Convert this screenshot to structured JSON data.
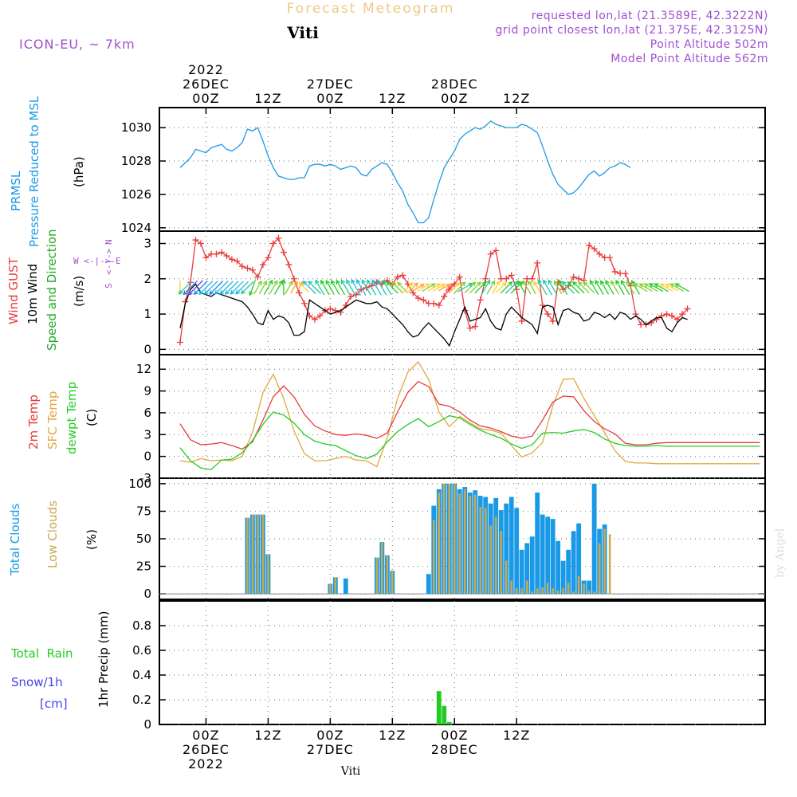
{
  "header": {
    "title": "Forecast Meteogram",
    "location": "Viti",
    "model": "ICON-EU, ~ 7km",
    "requested": "requested lon,lat (21.3589E, 42.3222N)",
    "gridpoint": "grid point closest lon,lat (21.375E, 42.3125N)",
    "point_alt": "Point Altitude 502m",
    "model_alt": "Model Point Altitude 562m",
    "footer_location": "Viti",
    "watermark": "by Angel"
  },
  "time_axis": {
    "x_range": [
      -9,
      108
    ],
    "ticks": [
      {
        "h": 0,
        "top": [
          "2022",
          "26DEC",
          "00Z"
        ],
        "bottom": [
          "00Z",
          "26DEC",
          "2022"
        ]
      },
      {
        "h": 12,
        "top": [
          "12Z"
        ],
        "bottom": [
          "12Z"
        ]
      },
      {
        "h": 24,
        "top": [
          "27DEC",
          "00Z"
        ],
        "bottom": [
          "00Z",
          "27DEC"
        ]
      },
      {
        "h": 36,
        "top": [
          "12Z"
        ],
        "bottom": [
          "12Z"
        ]
      },
      {
        "h": 48,
        "top": [
          "28DEC",
          "00Z"
        ],
        "bottom": [
          "00Z",
          "28DEC"
        ]
      },
      {
        "h": 60,
        "top": [
          "12Z"
        ],
        "bottom": [
          "12Z"
        ]
      }
    ]
  },
  "colors": {
    "pressure": "#1a9ae6",
    "gust": "#e83c3c",
    "wind": "#000000",
    "temp2m": "#e83c3c",
    "sfc": "#e0a840",
    "dewpt": "#22cc22",
    "total_clouds": "#1a9ae6",
    "low_clouds": "#c8a850",
    "rain": "#22cc22",
    "snow": "#4444ee",
    "purple": "#a050d0"
  },
  "chart_data": [
    {
      "type": "line",
      "panel": "pressure",
      "ylabels": [
        "PRMSL",
        "Pressure Reduced to MSL"
      ],
      "unit": "(hPa)",
      "ylim": [
        1023.8,
        1031.2
      ],
      "yticks": [
        1024,
        1026,
        1028,
        1030
      ],
      "series": [
        {
          "name": "PRMSL",
          "x_start": -5,
          "x_step": 1,
          "values": [
            1027.6,
            1027.9,
            1028.2,
            1028.7,
            1028.6,
            1028.5,
            1028.8,
            1028.9,
            1029.0,
            1028.7,
            1028.6,
            1028.8,
            1029.1,
            1029.9,
            1029.8,
            1030.0,
            1029.2,
            1028.3,
            1027.6,
            1027.1,
            1027.0,
            1026.9,
            1026.9,
            1027.0,
            1027.0,
            1027.7,
            1027.8,
            1027.8,
            1027.7,
            1027.8,
            1027.7,
            1027.5,
            1027.6,
            1027.7,
            1027.6,
            1027.2,
            1027.1,
            1027.5,
            1027.7,
            1027.9,
            1027.8,
            1027.3,
            1026.7,
            1026.2,
            1025.4,
            1024.9,
            1024.3,
            1024.3,
            1024.6,
            1025.7,
            1026.7,
            1027.6,
            1028.1,
            1028.6,
            1029.3,
            1029.6,
            1029.8,
            1030.0,
            1029.9,
            1030.1,
            1030.4,
            1030.2,
            1030.1,
            1030.0,
            1030.0,
            1030.0,
            1030.2,
            1030.1,
            1029.9,
            1029.7,
            1028.9,
            1028.0,
            1027.2,
            1026.6,
            1026.3,
            1026.0,
            1026.1,
            1026.4,
            1026.8,
            1027.2,
            1027.4,
            1027.1,
            1027.3,
            1027.6,
            1027.7,
            1027.9,
            1027.8,
            1027.6
          ]
        }
      ]
    },
    {
      "type": "line",
      "panel": "wind",
      "ylabels": [
        "Wind GUST",
        "10m Wind",
        "Speed and Direction"
      ],
      "unit": "(m/s)",
      "ylim": [
        -0.15,
        3.35
      ],
      "yticks": [
        0,
        1,
        2,
        3
      ],
      "compass": [
        "N",
        "W <-|-> E",
        "S"
      ],
      "series": [
        {
          "name": "Wind GUST",
          "x_start": -5,
          "x_step": 1,
          "values": [
            0.2,
            1.35,
            1.9,
            3.1,
            3.0,
            2.6,
            2.7,
            2.7,
            2.75,
            2.65,
            2.55,
            2.5,
            2.35,
            2.3,
            2.25,
            2.05,
            2.4,
            2.6,
            3.0,
            3.15,
            2.75,
            2.4,
            2.0,
            1.6,
            1.3,
            0.95,
            0.85,
            0.95,
            1.1,
            1.15,
            1.1,
            1.05,
            1.25,
            1.5,
            1.55,
            1.7,
            1.75,
            1.8,
            1.9,
            1.85,
            1.95,
            1.85,
            2.05,
            2.1,
            1.85,
            1.6,
            1.45,
            1.4,
            1.3,
            1.3,
            1.25,
            1.5,
            1.7,
            1.85,
            2.05,
            1.1,
            0.6,
            0.65,
            1.4,
            2.0,
            2.7,
            2.8,
            2.0,
            2.0,
            2.1,
            1.7,
            0.8,
            2.0,
            2.0,
            2.45,
            1.25,
            1.0,
            0.8,
            1.9,
            1.7,
            1.8,
            2.05,
            2.0,
            1.95,
            2.95,
            2.85,
            2.7,
            2.6,
            2.6,
            2.2,
            2.15,
            2.15,
            1.8,
            1.0,
            0.7,
            0.7,
            0.75,
            0.85,
            0.95,
            1.0,
            0.95,
            0.85,
            1.0,
            1.15
          ]
        },
        {
          "name": "10m Wind",
          "x_start": -5,
          "x_step": 1,
          "values": [
            0.6,
            1.3,
            1.7,
            1.85,
            1.6,
            1.55,
            1.5,
            1.6,
            1.55,
            1.5,
            1.45,
            1.4,
            1.35,
            1.2,
            1.0,
            0.75,
            0.7,
            1.1,
            0.85,
            0.95,
            0.9,
            0.75,
            0.4,
            0.4,
            0.5,
            1.4,
            1.3,
            1.2,
            1.1,
            1.0,
            1.05,
            1.1,
            1.2,
            1.3,
            1.4,
            1.35,
            1.3,
            1.3,
            1.35,
            1.2,
            1.15,
            1.0,
            0.85,
            0.7,
            0.5,
            0.35,
            0.4,
            0.6,
            0.75,
            0.6,
            0.45,
            0.3,
            0.1,
            0.5,
            0.85,
            1.2,
            0.8,
            0.85,
            0.9,
            1.15,
            0.8,
            0.6,
            0.55,
            1.0,
            1.2,
            1.05,
            0.9,
            0.8,
            0.7,
            0.45,
            1.2,
            1.25,
            1.2,
            0.7,
            1.1,
            1.15,
            1.05,
            1.0,
            0.8,
            0.85,
            1.05,
            1.0,
            0.9,
            1.0,
            0.85,
            1.05,
            1.0,
            0.85,
            0.95,
            0.85,
            0.7,
            0.8,
            0.9,
            0.9,
            0.6,
            0.5,
            0.75,
            0.9,
            0.85
          ]
        },
        {
          "name": "Speed and Direction",
          "directions": [
            180,
            225,
            225,
            225,
            225,
            225,
            225,
            225,
            225,
            225,
            225,
            225,
            225,
            225,
            200,
            30,
            30,
            30,
            30,
            30,
            0,
            30,
            30,
            30,
            315,
            315,
            315,
            330,
            330,
            330,
            330,
            330,
            330,
            330,
            330,
            330,
            330,
            330,
            330,
            330,
            330,
            315,
            315,
            315,
            45,
            45,
            60,
            60,
            60,
            60,
            60,
            60,
            45,
            45,
            45,
            60,
            45,
            45,
            45,
            30,
            30,
            30,
            45,
            45,
            45,
            45,
            330,
            330,
            330,
            330,
            330,
            330,
            330,
            330,
            330,
            315,
            315,
            315,
            315,
            315,
            330,
            330,
            330,
            330,
            330,
            330,
            330,
            330,
            330,
            300,
            300,
            300,
            300,
            300,
            300,
            300,
            300,
            300
          ]
        }
      ]
    },
    {
      "type": "line",
      "panel": "temperature",
      "ylabels": [
        "2m Temp",
        "SFC Temp",
        "dewpt Temp"
      ],
      "unit": "(C)",
      "ylim": [
        -3,
        14
      ],
      "yticks": [
        -3,
        0,
        3,
        6,
        9,
        12
      ],
      "series": [
        {
          "name": "2m Temp",
          "x": [
            -5,
            -3,
            -1,
            1,
            3,
            5,
            7,
            9,
            11,
            13,
            15,
            17,
            19,
            21,
            23,
            25,
            27,
            29,
            31,
            33,
            35,
            37,
            39,
            41,
            43,
            45,
            47,
            49,
            51,
            53,
            55,
            57,
            59,
            61,
            63,
            65,
            67,
            69,
            71,
            73,
            75,
            77,
            79,
            81,
            83,
            85,
            87,
            89,
            91,
            93,
            95,
            107
          ],
          "values": [
            4.5,
            2.3,
            1.6,
            1.7,
            1.9,
            1.5,
            1.0,
            2.0,
            5.0,
            8.2,
            9.7,
            8.2,
            5.8,
            4.2,
            3.5,
            3.0,
            2.9,
            3.1,
            2.9,
            2.5,
            3.2,
            6.1,
            8.8,
            10.3,
            9.6,
            7.2,
            6.9,
            6.1,
            5.0,
            4.2,
            3.9,
            3.4,
            2.8,
            2.5,
            2.8,
            5.0,
            7.5,
            8.3,
            8.2,
            6.3,
            4.8,
            3.8,
            3.1,
            1.8,
            1.6,
            1.6,
            1.8,
            1.9,
            1.9,
            1.9,
            1.9,
            1.9
          ]
        },
        {
          "name": "SFC Temp",
          "x": [
            -5,
            -3,
            -1,
            1,
            3,
            5,
            7,
            9,
            11,
            13,
            15,
            17,
            19,
            21,
            23,
            25,
            27,
            29,
            31,
            33,
            35,
            37,
            39,
            41,
            43,
            45,
            47,
            49,
            51,
            53,
            55,
            57,
            59,
            61,
            63,
            65,
            67,
            69,
            71,
            73,
            75,
            77,
            79,
            81,
            83,
            85,
            87,
            89,
            91,
            93,
            95,
            107
          ],
          "values": [
            -0.6,
            -0.8,
            -0.3,
            -0.6,
            -0.5,
            -0.6,
            0.0,
            3.3,
            8.8,
            11.3,
            8.0,
            3.5,
            0.4,
            -0.6,
            -0.6,
            -0.3,
            0.0,
            -0.5,
            -0.6,
            -1.4,
            2.5,
            8.0,
            11.6,
            13.0,
            10.6,
            6.1,
            4.1,
            5.5,
            4.6,
            3.8,
            3.6,
            3.2,
            1.5,
            -0.1,
            0.5,
            1.9,
            7.0,
            10.6,
            10.7,
            8.0,
            5.6,
            3.3,
            0.8,
            -0.7,
            -0.9,
            -0.9,
            -1.0,
            -1.0,
            -1.0,
            -1.0,
            -1.0,
            -1.0
          ]
        },
        {
          "name": "dewpt Temp",
          "x": [
            -5,
            -3,
            -1,
            1,
            3,
            5,
            7,
            9,
            11,
            13,
            15,
            17,
            19,
            21,
            23,
            25,
            27,
            29,
            31,
            33,
            35,
            37,
            39,
            41,
            43,
            45,
            47,
            49,
            51,
            53,
            55,
            57,
            59,
            61,
            63,
            65,
            67,
            69,
            71,
            73,
            75,
            77,
            79,
            81,
            83,
            85,
            87,
            89,
            91,
            93,
            95,
            107
          ],
          "values": [
            1.2,
            -0.6,
            -1.6,
            -1.8,
            -0.5,
            -0.4,
            0.5,
            2.2,
            4.4,
            6.1,
            5.7,
            4.6,
            3.0,
            2.1,
            1.7,
            1.5,
            0.8,
            0.1,
            -0.3,
            0.3,
            2.0,
            3.4,
            4.4,
            5.2,
            4.1,
            4.8,
            5.6,
            5.3,
            4.4,
            3.6,
            3.0,
            2.5,
            1.7,
            1.1,
            1.6,
            3.2,
            3.3,
            3.2,
            3.5,
            3.7,
            3.3,
            2.4,
            1.8,
            1.5,
            1.4,
            1.4,
            1.5,
            1.4,
            1.4,
            1.4,
            1.4,
            1.4
          ]
        }
      ]
    },
    {
      "type": "bar",
      "panel": "clouds",
      "ylabels": [
        "Total Clouds",
        "Low Clouds"
      ],
      "unit": "(%)",
      "ylim": [
        -5,
        105
      ],
      "yticks": [
        0,
        25,
        50,
        75,
        100
      ],
      "hours": [
        8,
        9,
        10,
        11,
        12,
        24,
        25,
        27,
        33,
        34,
        35,
        36,
        43,
        44,
        45,
        46,
        47,
        48,
        49,
        50,
        51,
        52,
        53,
        54,
        55,
        56,
        57,
        58,
        59,
        60,
        61,
        62,
        63,
        64,
        65,
        66,
        67,
        68,
        69,
        70,
        71,
        72,
        73,
        74,
        75,
        76,
        77,
        78,
        79,
        80,
        81
      ],
      "series": [
        {
          "name": "Total Clouds",
          "values": [
            69,
            72,
            72,
            72,
            36,
            9,
            15,
            14,
            33,
            47,
            35,
            21,
            18,
            80,
            95,
            100,
            100,
            100,
            95,
            97,
            92,
            94,
            89,
            88,
            82,
            87,
            76,
            82,
            88,
            78,
            40,
            46,
            52,
            92,
            72,
            70,
            68,
            48,
            30,
            40,
            57,
            64,
            12,
            12,
            100,
            59,
            63,
            0,
            0,
            0,
            0
          ]
        },
        {
          "name": "Low Clouds",
          "values": [
            69,
            72,
            72,
            72,
            36,
            9,
            15,
            0,
            33,
            47,
            35,
            21,
            0,
            67,
            92,
            100,
            100,
            100,
            91,
            95,
            89,
            90,
            79,
            78,
            62,
            70,
            57,
            30,
            12,
            5,
            5,
            12,
            2,
            5,
            6,
            10,
            5,
            3,
            5,
            10,
            2,
            16,
            9,
            3,
            2,
            46,
            59,
            54,
            0,
            0,
            0
          ]
        }
      ]
    },
    {
      "type": "bar",
      "panel": "precip",
      "ylabels": [
        "Total  Rain",
        "Snow/1h",
        "[cm]"
      ],
      "axis_label": "1hr Precip (mm)",
      "ylim": [
        0,
        1.0
      ],
      "yticks": [
        0,
        0.2,
        0.4,
        0.6,
        0.8
      ],
      "ytick_labels": [
        "0",
        "0.2",
        "0.4",
        "0.6",
        "0.8"
      ],
      "hours": [
        45,
        46,
        47
      ],
      "series": [
        {
          "name": "Total Rain",
          "values": [
            0.27,
            0.15,
            0.02
          ]
        }
      ]
    }
  ]
}
